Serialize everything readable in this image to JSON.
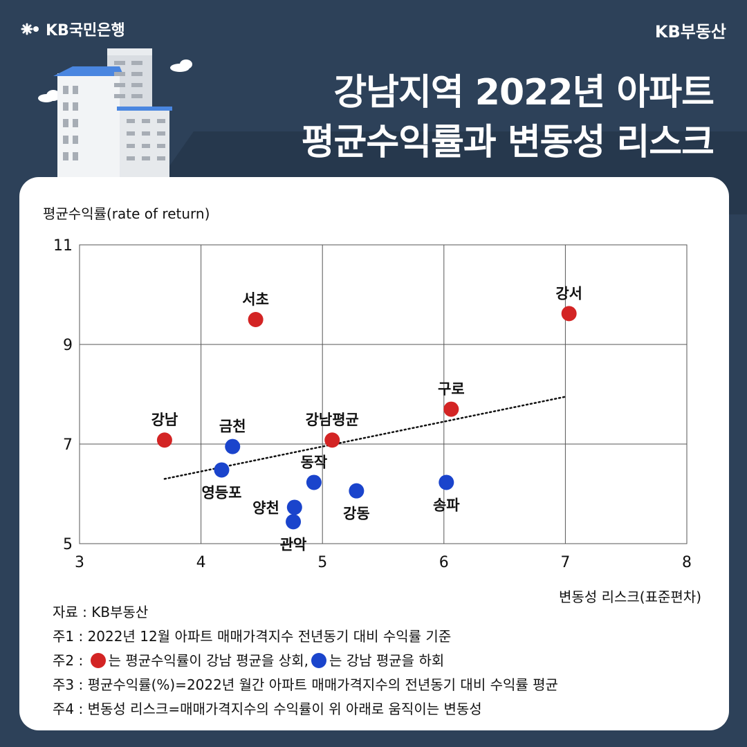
{
  "header": {
    "brand_left": "KB국민은행",
    "brand_right": "KB부동산",
    "title_line1": "강남지역 2022년 아파트",
    "title_line2": "평균수익률과 변동성 리스크"
  },
  "colors": {
    "background": "#2d4159",
    "above_avg": "#d32424",
    "below_avg": "#1a44cc",
    "grid": "#555555"
  },
  "chart_data": {
    "type": "scatter",
    "ylabel": "평균수익률(rate of return)",
    "xlabel": "변동성 리스크(표준편차)",
    "xlim": [
      3,
      8
    ],
    "ylim": [
      5,
      11
    ],
    "xticks": [
      3,
      4,
      5,
      6,
      7,
      8
    ],
    "yticks": [
      5,
      7,
      9,
      11
    ],
    "grid": true,
    "trendline": {
      "x1": 3.7,
      "y1": 6.3,
      "x2": 7.0,
      "y2": 7.95,
      "style": "dotted"
    },
    "points": [
      {
        "label": "서초",
        "x": 4.45,
        "y": 9.5,
        "group": "above",
        "label_pos": "above"
      },
      {
        "label": "강서",
        "x": 7.03,
        "y": 9.62,
        "group": "above",
        "label_pos": "above"
      },
      {
        "label": "구로",
        "x": 6.06,
        "y": 7.7,
        "group": "above",
        "label_pos": "above"
      },
      {
        "label": "강남",
        "x": 3.7,
        "y": 7.08,
        "group": "above",
        "label_pos": "above"
      },
      {
        "label": "강남평균",
        "x": 5.08,
        "y": 7.08,
        "group": "above",
        "label_pos": "above"
      },
      {
        "label": "금천",
        "x": 4.26,
        "y": 6.95,
        "group": "below",
        "label_pos": "above"
      },
      {
        "label": "영등포",
        "x": 4.17,
        "y": 6.48,
        "group": "below",
        "label_pos": "below"
      },
      {
        "label": "동작",
        "x": 4.93,
        "y": 6.23,
        "group": "below",
        "label_pos": "above"
      },
      {
        "label": "강동",
        "x": 5.28,
        "y": 6.06,
        "group": "below",
        "label_pos": "below"
      },
      {
        "label": "송파",
        "x": 6.02,
        "y": 6.23,
        "group": "below",
        "label_pos": "below"
      },
      {
        "label": "양천",
        "x": 4.77,
        "y": 5.73,
        "group": "below",
        "label_pos": "left"
      },
      {
        "label": "관악",
        "x": 4.76,
        "y": 5.44,
        "group": "below",
        "label_pos": "below"
      }
    ]
  },
  "notes": {
    "source": "자료 : KB부동산",
    "note1": "주1 : 2022년 12월 아파트 매매가격지수 전년동기 대비 수익률 기준",
    "note2_prefix": "주2 : ",
    "note2_red": "는 평균수익률이 강남 평균을 상회,",
    "note2_blue": "는 강남 평균을 하회",
    "note3": "주3 : 평균수익률(%)=2022년 월간 아파트 매매가격지수의 전년동기 대비 수익률 평균",
    "note4": "주4 : 변동성 리스크=매매가격지수의 수익률이 위 아래로 움직이는 변동성"
  }
}
